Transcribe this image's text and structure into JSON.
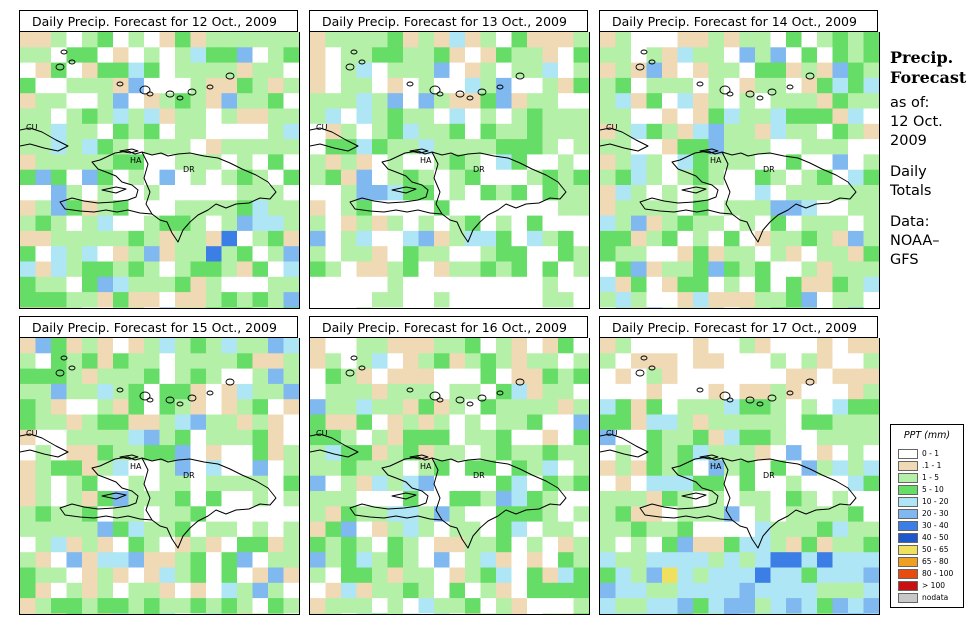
{
  "panels": [
    {
      "title": "Daily Precip. Forecast for  12 Oct., 2009",
      "seed": 11,
      "pattern": "day1"
    },
    {
      "title": "Daily Precip. Forecast for  13 Oct., 2009",
      "seed": 23,
      "pattern": "day2"
    },
    {
      "title": "Daily Precip. Forecast for  14 Oct., 2009",
      "seed": 37,
      "pattern": "day3"
    },
    {
      "title": "Daily Precip. Forecast for  15 Oct., 2009",
      "seed": 41,
      "pattern": "day4"
    },
    {
      "title": "Daily Precip. Forecast for  16 Oct., 2009",
      "seed": 53,
      "pattern": "day5"
    },
    {
      "title": "Daily Precip. Forecast for  17 Oct., 2009",
      "seed": 67,
      "pattern": "day6"
    }
  ],
  "map_labels": {
    "cuba": "CU",
    "haiti": "HA",
    "dr": "DR"
  },
  "side": {
    "heading_line1": "Precip.",
    "heading_line2": "Forecast",
    "asof": "as of:",
    "date_line1": "12 Oct.",
    "date_line2": "2009",
    "daily_line1": "Daily",
    "daily_line2": "Totals",
    "data_line1": "Data:",
    "data_line2": "NOAA–",
    "data_line3": "GFS"
  },
  "legend": {
    "title": "PPT (mm)",
    "items": [
      {
        "label": "0 - 1",
        "color": "#ffffff"
      },
      {
        "label": ".1 - 1",
        "color": "#f0d9b5"
      },
      {
        "label": "1 - 5",
        "color": "#b4f0a8"
      },
      {
        "label": "5 - 10",
        "color": "#66dd66"
      },
      {
        "label": "10 - 20",
        "color": "#aee6f5"
      },
      {
        "label": "20 - 30",
        "color": "#80b8f0"
      },
      {
        "label": "30 - 40",
        "color": "#3a7ee6"
      },
      {
        "label": "40 - 50",
        "color": "#1f57cc"
      },
      {
        "label": "50 - 65",
        "color": "#f0e060"
      },
      {
        "label": "65 - 80",
        "color": "#f0a020"
      },
      {
        "label": "80 - 100",
        "color": "#e84c10"
      },
      {
        "label": "> 100",
        "color": "#c81010"
      },
      {
        "label": "nodata",
        "color": "#c8c8c8"
      }
    ]
  }
}
